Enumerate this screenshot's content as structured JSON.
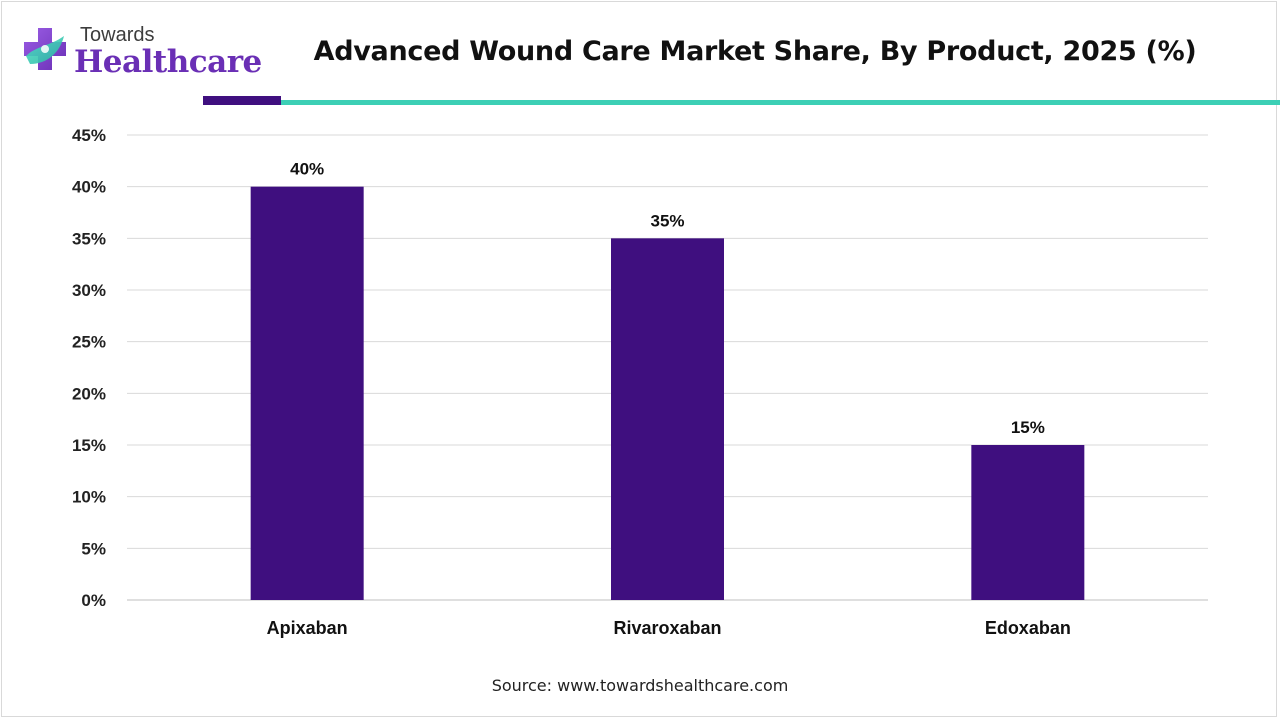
{
  "brand": {
    "logo_top": "Towards",
    "logo_bottom": "Healthcare",
    "colors": {
      "purple": "#6a2fb5",
      "teal": "#3ccfb5",
      "dark_purple": "#3f0f7f"
    }
  },
  "header": {
    "title": "Advanced Wound Care Market Share, By Product, 2025 (%)",
    "accent_colors": [
      "#3f0f7f",
      "#3ccfb5"
    ]
  },
  "chart_data": {
    "type": "bar",
    "title": "Advanced Wound Care Market Share, By Product, 2025 (%)",
    "xlabel": "",
    "ylabel": "",
    "categories": [
      "Apixaban",
      "Rivaroxaban",
      "Edoxaban"
    ],
    "values": [
      40,
      35,
      15
    ],
    "data_labels": [
      "40%",
      "35%",
      "15%"
    ],
    "ylim": [
      0,
      45
    ],
    "yticks": [
      0,
      5,
      10,
      15,
      20,
      25,
      30,
      35,
      40,
      45
    ],
    "ytick_labels": [
      "0%",
      "5%",
      "10%",
      "15%",
      "20%",
      "25%",
      "30%",
      "35%",
      "40%",
      "45%"
    ],
    "bar_color": "#3f0f7f",
    "grid": true,
    "legend": "none"
  },
  "footer": {
    "source": "Source: www.towardshealthcare.com"
  }
}
